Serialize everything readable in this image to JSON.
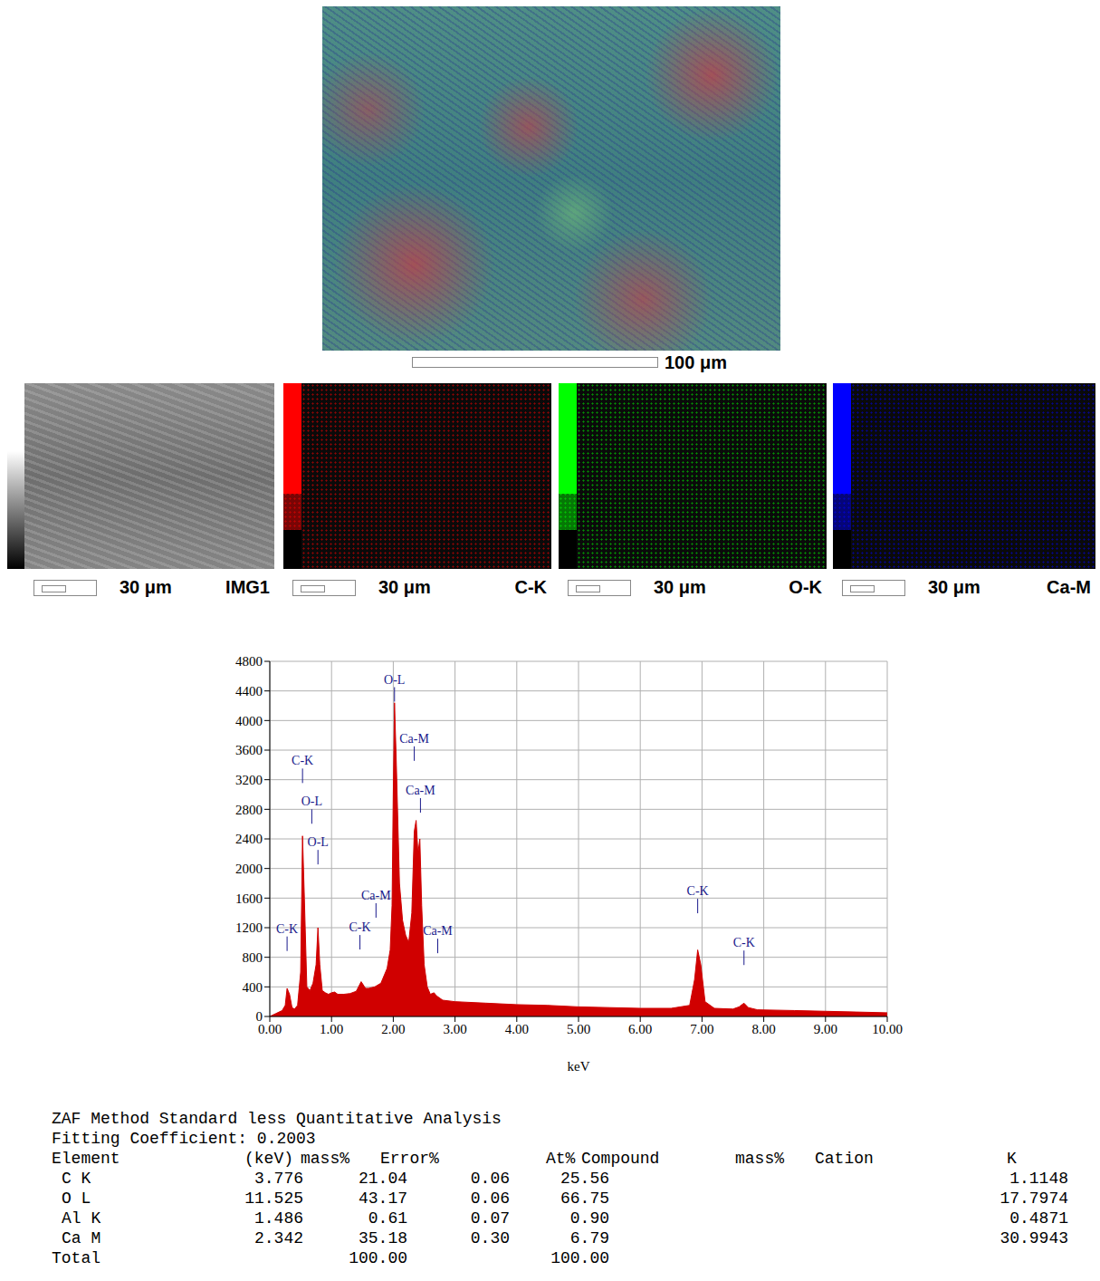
{
  "images": {
    "overview_scale_bar": "100 μm",
    "maps": [
      {
        "label": "IMG1",
        "scale_bar": "30 μm"
      },
      {
        "label": "C-K",
        "scale_bar": "30 μm",
        "color": "#ff0000"
      },
      {
        "label": "O-K",
        "scale_bar": "30 μm",
        "color": "#00ff00"
      },
      {
        "label": "Ca-M",
        "scale_bar": "30 μm",
        "color": "#0000ff"
      }
    ]
  },
  "chart_data": {
    "type": "area",
    "x_label": "keV",
    "color": "#d00000",
    "grid": true,
    "x": [
      0,
      0.05,
      0.1,
      0.2,
      0.25,
      0.28,
      0.32,
      0.36,
      0.4,
      0.45,
      0.5,
      0.53,
      0.56,
      0.6,
      0.65,
      0.7,
      0.75,
      0.78,
      0.81,
      0.85,
      0.9,
      0.95,
      1.0,
      1.05,
      1.1,
      1.2,
      1.3,
      1.4,
      1.48,
      1.55,
      1.6,
      1.7,
      1.8,
      1.9,
      1.95,
      1.98,
      2.0,
      2.02,
      2.05,
      2.1,
      2.15,
      2.2,
      2.25,
      2.3,
      2.34,
      2.37,
      2.4,
      2.43,
      2.46,
      2.5,
      2.55,
      2.6,
      2.66,
      2.7,
      2.8,
      3.0,
      3.5,
      4.0,
      4.5,
      5.0,
      5.5,
      6.0,
      6.5,
      6.8,
      6.88,
      6.93,
      6.98,
      7.05,
      7.2,
      7.5,
      7.6,
      7.68,
      7.75,
      7.9,
      8.5,
      9.0,
      9.5,
      10.0
    ],
    "values": [
      0,
      20,
      40,
      80,
      150,
      380,
      300,
      120,
      100,
      150,
      600,
      2440,
      1600,
      400,
      350,
      450,
      700,
      1200,
      700,
      350,
      320,
      300,
      320,
      330,
      300,
      300,
      310,
      340,
      470,
      380,
      380,
      400,
      450,
      650,
      900,
      1500,
      3000,
      4240,
      3400,
      1800,
      1300,
      1100,
      1000,
      1400,
      2500,
      2650,
      2200,
      2400,
      1500,
      700,
      400,
      300,
      320,
      280,
      220,
      200,
      180,
      160,
      150,
      130,
      120,
      110,
      110,
      150,
      500,
      900,
      700,
      200,
      110,
      100,
      130,
      180,
      120,
      90,
      80,
      70,
      60,
      50
    ],
    "xlim": [
      0,
      10
    ],
    "xticks": [
      {
        "value": 0,
        "label": "0.00"
      },
      {
        "value": 1,
        "label": "1.00"
      },
      {
        "value": 2,
        "label": "2.00"
      },
      {
        "value": 3,
        "label": "3.00"
      },
      {
        "value": 4,
        "label": "4.00"
      },
      {
        "value": 5,
        "label": "5.00"
      },
      {
        "value": 6,
        "label": "6.00"
      },
      {
        "value": 7,
        "label": "7.00"
      },
      {
        "value": 8,
        "label": "8.00"
      },
      {
        "value": 9,
        "label": "9.00"
      },
      {
        "value": 10,
        "label": "10.00"
      }
    ],
    "ylim": [
      0,
      4800
    ],
    "yticks": [
      0,
      400,
      800,
      1200,
      1600,
      2000,
      2400,
      2800,
      3200,
      3600,
      4000,
      4400,
      4800
    ],
    "annotations": [
      {
        "text": "C-K",
        "x": 0.28,
        "y": 1130
      },
      {
        "text": "C-K",
        "x": 0.53,
        "y": 3400
      },
      {
        "text": "O-L",
        "x": 0.68,
        "y": 2850
      },
      {
        "text": "O-L",
        "x": 0.78,
        "y": 2300
      },
      {
        "text": "C-K",
        "x": 1.46,
        "y": 1150
      },
      {
        "text": "Ca-M",
        "x": 1.72,
        "y": 1580
      },
      {
        "text": "O-L",
        "x": 2.02,
        "y": 4500
      },
      {
        "text": "Ca-M",
        "x": 2.34,
        "y": 3700
      },
      {
        "text": "Ca-M",
        "x": 2.44,
        "y": 3000
      },
      {
        "text": "Ca-M",
        "x": 2.72,
        "y": 1100
      },
      {
        "text": "C-K",
        "x": 6.93,
        "y": 1640
      },
      {
        "text": "C-K",
        "x": 7.68,
        "y": 940
      }
    ]
  },
  "table": {
    "title": "ZAF Method Standard less Quantitative Analysis",
    "subtitle": "Fitting Coefficient: 0.2003",
    "columns": [
      "Element",
      "(keV)",
      "mass%",
      "Error%",
      "At%",
      "Compound",
      "mass%",
      "Cation",
      "K"
    ],
    "rows": [
      {
        "element": "C K",
        "kev": "3.776",
        "mass": "21.04",
        "error": "0.06",
        "at": "25.56",
        "k": "1.1148"
      },
      {
        "element": "O L",
        "kev": "11.525",
        "mass": "43.17",
        "error": "0.06",
        "at": "66.75",
        "k": "17.7974"
      },
      {
        "element": "Al K",
        "kev": "1.486",
        "mass": "0.61",
        "error": "0.07",
        "at": "0.90",
        "k": "0.4871"
      },
      {
        "element": "Ca M",
        "kev": "2.342",
        "mass": "35.18",
        "error": "0.30",
        "at": "6.79",
        "k": "30.9943"
      }
    ],
    "total": {
      "element": "Total",
      "mass": "100.00",
      "at": "100.00"
    }
  }
}
